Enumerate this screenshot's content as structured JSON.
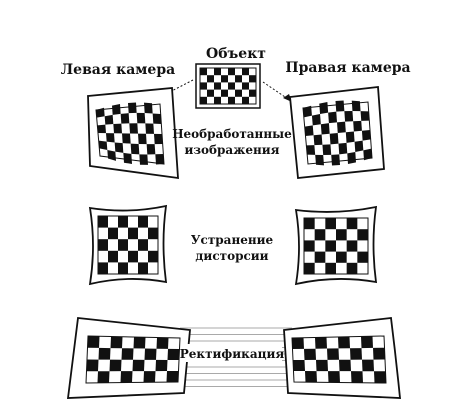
{
  "labels": {
    "object": "Объект",
    "left_camera": "Левая камера",
    "right_camera": "Правая камера",
    "raw_line1": "Необработанные",
    "raw_line2": "изображения",
    "undistort_line1": "Устранение",
    "undistort_line2": "дисторсии",
    "rectify": "Ректификация"
  },
  "colors": {
    "ink": "#111111",
    "paper": "#ffffff"
  }
}
